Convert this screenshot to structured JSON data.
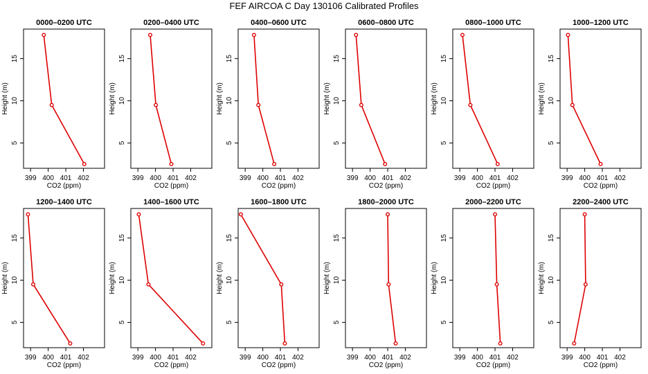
{
  "title": "FEF AIRCOA C  Day 130106  Calibrated Profiles",
  "colors": {
    "line": "#dd0000",
    "axis": "#000000"
  },
  "chart_data": [
    {
      "type": "line",
      "title": "0000–0200 UTC",
      "xlabel": "CO2 (ppm)",
      "ylabel": "Height (m)",
      "xlim": [
        398.6,
        403.2
      ],
      "ylim": [
        2,
        18.5
      ],
      "xticks": [
        399,
        400,
        401,
        402
      ],
      "yticks": [
        5,
        10,
        15
      ],
      "heights": [
        17.8,
        9.5,
        2.5
      ],
      "values": [
        399.75,
        400.2,
        402.05
      ]
    },
    {
      "type": "line",
      "title": "0200–0400 UTC",
      "xlabel": "CO2 (ppm)",
      "ylabel": "Height (m)",
      "xlim": [
        398.6,
        403.2
      ],
      "ylim": [
        2,
        18.5
      ],
      "xticks": [
        399,
        400,
        401,
        402
      ],
      "yticks": [
        5,
        10,
        15
      ],
      "heights": [
        17.8,
        9.5,
        2.5
      ],
      "values": [
        399.7,
        400.02,
        400.9
      ]
    },
    {
      "type": "line",
      "title": "0400–0600 UTC",
      "xlabel": "CO2 (ppm)",
      "ylabel": "Height (m)",
      "xlim": [
        398.6,
        403.2
      ],
      "ylim": [
        2,
        18.5
      ],
      "xticks": [
        399,
        400,
        401,
        402
      ],
      "yticks": [
        5,
        10,
        15
      ],
      "heights": [
        17.8,
        9.5,
        2.5
      ],
      "values": [
        399.5,
        399.75,
        400.65
      ]
    },
    {
      "type": "line",
      "title": "0600–0800 UTC",
      "xlabel": "CO2 (ppm)",
      "ylabel": "Height (m)",
      "xlim": [
        398.6,
        403.2
      ],
      "ylim": [
        2,
        18.5
      ],
      "xticks": [
        399,
        400,
        401,
        402
      ],
      "yticks": [
        5,
        10,
        15
      ],
      "heights": [
        17.8,
        9.5,
        2.5
      ],
      "values": [
        399.2,
        399.5,
        400.85
      ]
    },
    {
      "type": "line",
      "title": "0800–1000 UTC",
      "xlabel": "CO2 (ppm)",
      "ylabel": "Height (m)",
      "xlim": [
        398.6,
        403.2
      ],
      "ylim": [
        2,
        18.5
      ],
      "xticks": [
        399,
        400,
        401,
        402
      ],
      "yticks": [
        5,
        10,
        15
      ],
      "heights": [
        17.8,
        9.5,
        2.5
      ],
      "values": [
        399.15,
        399.6,
        401.15
      ]
    },
    {
      "type": "line",
      "title": "1000–1200 UTC",
      "xlabel": "CO2 (ppm)",
      "ylabel": "Height (m)",
      "xlim": [
        398.6,
        403.2
      ],
      "ylim": [
        2,
        18.5
      ],
      "xticks": [
        399,
        400,
        401,
        402
      ],
      "yticks": [
        5,
        10,
        15
      ],
      "heights": [
        17.8,
        9.5,
        2.5
      ],
      "values": [
        399.05,
        399.3,
        400.9
      ]
    },
    {
      "type": "line",
      "title": "1200–1400 UTC",
      "xlabel": "CO2 (ppm)",
      "ylabel": "Height (m)",
      "xlim": [
        398.6,
        403.2
      ],
      "ylim": [
        2,
        18.5
      ],
      "xticks": [
        399,
        400,
        401,
        402
      ],
      "yticks": [
        5,
        10,
        15
      ],
      "heights": [
        17.8,
        9.5,
        2.5
      ],
      "values": [
        398.85,
        399.15,
        401.25
      ]
    },
    {
      "type": "line",
      "title": "1400–1600 UTC",
      "xlabel": "CO2 (ppm)",
      "ylabel": "Height (m)",
      "xlim": [
        398.6,
        403.2
      ],
      "ylim": [
        2,
        18.5
      ],
      "xticks": [
        399,
        400,
        401,
        402
      ],
      "yticks": [
        5,
        10,
        15
      ],
      "heights": [
        17.8,
        9.5,
        2.5
      ],
      "values": [
        399.05,
        399.6,
        402.7
      ]
    },
    {
      "type": "line",
      "title": "1600–1800 UTC",
      "xlabel": "CO2 (ppm)",
      "ylabel": "Height (m)",
      "xlim": [
        398.6,
        403.2
      ],
      "ylim": [
        2,
        18.5
      ],
      "xticks": [
        399,
        400,
        401,
        402
      ],
      "yticks": [
        5,
        10,
        15
      ],
      "heights": [
        17.8,
        9.5,
        2.5
      ],
      "values": [
        398.75,
        401.05,
        401.25
      ]
    },
    {
      "type": "line",
      "title": "1800–2000 UTC",
      "xlabel": "CO2 (ppm)",
      "ylabel": "Height (m)",
      "xlim": [
        398.6,
        403.2
      ],
      "ylim": [
        2,
        18.5
      ],
      "xticks": [
        399,
        400,
        401,
        402
      ],
      "yticks": [
        5,
        10,
        15
      ],
      "heights": [
        17.8,
        9.5,
        2.5
      ],
      "values": [
        401.0,
        401.05,
        401.45
      ]
    },
    {
      "type": "line",
      "title": "2000–2200 UTC",
      "xlabel": "CO2 (ppm)",
      "ylabel": "Height (m)",
      "xlim": [
        398.6,
        403.2
      ],
      "ylim": [
        2,
        18.5
      ],
      "xticks": [
        399,
        400,
        401,
        402
      ],
      "yticks": [
        5,
        10,
        15
      ],
      "heights": [
        17.8,
        9.5,
        2.5
      ],
      "values": [
        401.0,
        401.1,
        401.3
      ]
    },
    {
      "type": "line",
      "title": "2200–2400 UTC",
      "xlabel": "CO2 (ppm)",
      "ylabel": "Height (m)",
      "xlim": [
        398.6,
        403.2
      ],
      "ylim": [
        2,
        18.5
      ],
      "xticks": [
        399,
        400,
        401,
        402
      ],
      "yticks": [
        5,
        10,
        15
      ],
      "heights": [
        17.8,
        9.5,
        2.5
      ],
      "values": [
        400.0,
        400.05,
        399.4
      ]
    }
  ]
}
